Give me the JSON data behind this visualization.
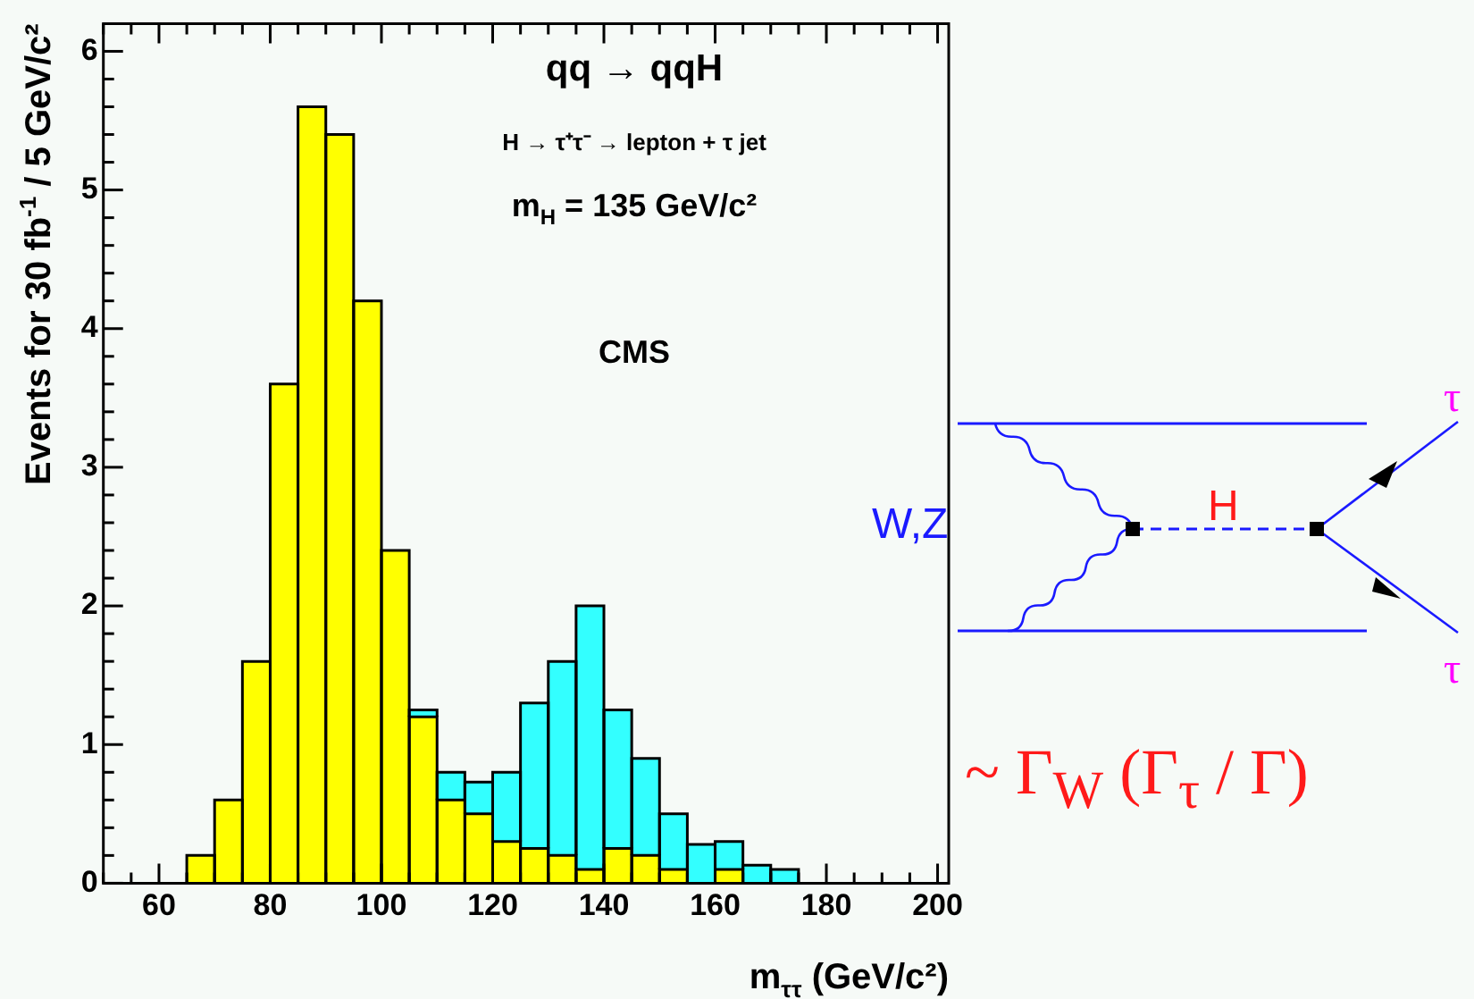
{
  "chart_data": {
    "type": "bar",
    "xlabel": "m$_{ττ}$ (GeV/c²)",
    "ylabel": "Events for 30 fb$^{-1}$ / 5 GeV/c²",
    "x": [
      67.5,
      72.5,
      77.5,
      82.5,
      87.5,
      92.5,
      97.5,
      102.5,
      107.5,
      112.5,
      117.5,
      122.5,
      127.5,
      132.5,
      137.5,
      142.5,
      147.5,
      152.5,
      157.5,
      162.5,
      167.5,
      172.5,
      177.5
    ],
    "series": [
      {
        "color": "#ffff00",
        "values": [
          0.2,
          0.6,
          1.6,
          3.6,
          5.6,
          5.4,
          4.2,
          2.4,
          1.2,
          0.6,
          0.5,
          0.3,
          0.25,
          0.2,
          0.1,
          0.25,
          0.2,
          0.1,
          null,
          0.1,
          null,
          0,
          0
        ]
      },
      {
        "color": "#33ffff",
        "values": [
          null,
          null,
          null,
          null,
          null,
          null,
          null,
          null,
          0.05,
          0.2,
          0.23,
          0.5,
          1.05,
          1.4,
          1.9,
          1.0,
          0.7,
          0.4,
          0.28,
          0.2,
          0.13,
          0.1,
          null
        ]
      }
    ],
    "stacked": true,
    "xlim": [
      50,
      202
    ],
    "ylim": [
      0,
      6.2
    ],
    "xticks": [
      {
        "value": 50,
        "label": null
      },
      {
        "value": 55,
        "label": null
      },
      60,
      {
        "value": 65,
        "label": null
      },
      {
        "value": 70,
        "label": null
      },
      {
        "value": 75,
        "label": null
      },
      80,
      {
        "value": 85,
        "label": null
      },
      {
        "value": 90,
        "label": null
      },
      {
        "value": 95,
        "label": null
      },
      100,
      {
        "value": 105,
        "label": null
      },
      {
        "value": 110,
        "label": null
      },
      {
        "value": 115,
        "label": null
      },
      120,
      {
        "value": 125,
        "label": null
      },
      {
        "value": 130,
        "label": null
      },
      {
        "value": 135,
        "label": null
      },
      140,
      {
        "value": 145,
        "label": null
      },
      {
        "value": 150,
        "label": null
      },
      {
        "value": 155,
        "label": null
      },
      160,
      {
        "value": 165,
        "label": null
      },
      {
        "value": 170,
        "label": null
      },
      {
        "value": 175,
        "label": null
      },
      180,
      {
        "value": 185,
        "label": null
      },
      {
        "value": 190,
        "label": null
      },
      {
        "value": 195,
        "label": null
      },
      200
    ],
    "yticks": [
      0,
      {
        "value": 0.2,
        "label": null
      },
      {
        "value": 0.4,
        "label": null
      },
      {
        "value": 0.6,
        "label": null
      },
      {
        "value": 0.8,
        "label": null
      },
      1,
      {
        "value": 1.2,
        "label": null
      },
      {
        "value": 1.4,
        "label": null
      },
      {
        "value": 1.6,
        "label": null
      },
      {
        "value": 1.8,
        "label": null
      },
      2,
      {
        "value": 2.2,
        "label": null
      },
      {
        "value": 2.4,
        "label": null
      },
      {
        "value": 2.6,
        "label": null
      },
      {
        "value": 2.8,
        "label": null
      },
      3,
      {
        "value": 3.2,
        "label": null
      },
      {
        "value": 3.4,
        "label": null
      },
      {
        "value": 3.6,
        "label": null
      },
      {
        "value": 3.8,
        "label": null
      },
      4,
      {
        "value": 4.2,
        "label": null
      },
      {
        "value": 4.4,
        "label": null
      },
      {
        "value": 4.6,
        "label": null
      },
      {
        "value": 4.8,
        "label": null
      },
      5,
      {
        "value": 5.2,
        "label": null
      },
      {
        "value": 5.4,
        "label": null
      },
      {
        "value": 5.6,
        "label": null
      },
      {
        "value": 5.8,
        "label": null
      },
      6
    ],
    "grid": false,
    "legend": false,
    "annotations": [
      "qq → qqH",
      "H → τ⁺τ⁻ → lepton + τ jet",
      "m$_{H}$ = 135 GeV/c²",
      "CMS",
      "W,Z",
      "H",
      "τ",
      "τ",
      "~ Γ$_{W}$ (Γ$_{τ}$ / Γ)"
    ]
  }
}
